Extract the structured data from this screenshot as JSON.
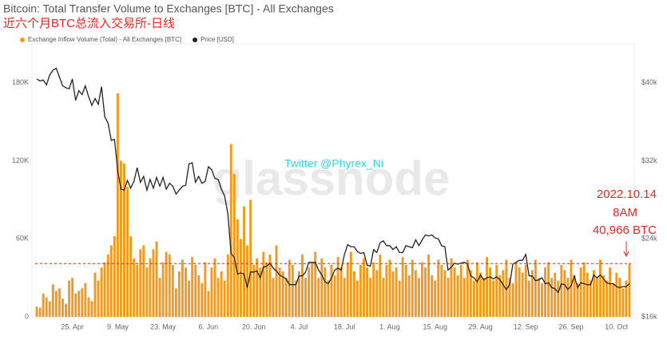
{
  "chart_data": {
    "type": "bar",
    "title": "Bitcoin: Total Transfer Volume to Exchanges [BTC] - All Exchanges",
    "subtitle": "近六个月BTC总流入交易所-日线",
    "watermark": "glassnode",
    "annotations": [
      "Twitter @Phyrex_Ni",
      "2022.10.14",
      "8AM",
      "40,966 BTC"
    ],
    "categories": [
      null,
      null,
      null,
      null,
      null,
      null,
      null,
      null,
      null,
      null,
      null,
      "25. Apr",
      null,
      null,
      null,
      null,
      null,
      null,
      null,
      null,
      null,
      null,
      null,
      null,
      null,
      "9. May",
      null,
      null,
      null,
      null,
      null,
      null,
      null,
      null,
      null,
      null,
      null,
      null,
      null,
      "23. May",
      null,
      null,
      null,
      null,
      null,
      null,
      null,
      null,
      null,
      null,
      null,
      null,
      null,
      "6. Jun",
      null,
      null,
      null,
      null,
      null,
      null,
      null,
      null,
      null,
      null,
      null,
      null,
      null,
      "20. Jun",
      null,
      null,
      null,
      null,
      null,
      null,
      null,
      null,
      null,
      null,
      null,
      null,
      null,
      "4. Jul",
      null,
      null,
      null,
      null,
      null,
      null,
      null,
      null,
      null,
      null,
      null,
      null,
      null,
      "18. Jul",
      null,
      null,
      null,
      null,
      null,
      null,
      null,
      null,
      null,
      null,
      null,
      null,
      null,
      "1. Aug",
      null,
      null,
      null,
      null,
      null,
      null,
      null,
      null,
      null,
      null,
      null,
      null,
      null,
      "15. Aug",
      null,
      null,
      null,
      null,
      null,
      null,
      null,
      null,
      null,
      null,
      null,
      null,
      null,
      "29. Aug",
      null,
      null,
      null,
      null,
      null,
      null,
      null,
      null,
      null,
      null,
      null,
      null,
      null,
      "12. Sep",
      null,
      null,
      null,
      null,
      null,
      null,
      null,
      null,
      null,
      null,
      null,
      null,
      null,
      "26. Sep",
      null,
      null,
      null,
      null,
      null,
      null,
      null,
      null,
      null,
      null,
      null,
      null,
      null,
      "10. Oct",
      null,
      null,
      null,
      null
    ],
    "series": [
      {
        "name": "Exchange Inflow Volume (Total) - All Exchanges [BTC]",
        "type": "bar",
        "color": "#f39a1e",
        "values": [
          8000,
          7000,
          18000,
          15000,
          12000,
          25000,
          20000,
          22000,
          14000,
          10000,
          28000,
          30000,
          18000,
          20000,
          22000,
          26000,
          15000,
          12000,
          34000,
          28000,
          38000,
          42000,
          48000,
          55000,
          62000,
          172000,
          120000,
          118000,
          100000,
          62000,
          45000,
          40000,
          52000,
          55000,
          38000,
          45000,
          52000,
          58000,
          30000,
          42000,
          50000,
          48000,
          40000,
          22000,
          35000,
          44000,
          38000,
          28000,
          46000,
          40000,
          32000,
          26000,
          42000,
          20000,
          38000,
          45000,
          30000,
          35000,
          28000,
          48000,
          133000,
          110000,
          75000,
          60000,
          85000,
          55000,
          90000,
          40000,
          45000,
          38000,
          50000,
          42000,
          48000,
          30000,
          55000,
          38000,
          35000,
          30000,
          44000,
          40000,
          28000,
          35000,
          48000,
          30000,
          38000,
          42000,
          50000,
          30000,
          45000,
          38000,
          28000,
          40000,
          32000,
          46000,
          38000,
          30000,
          42000,
          50000,
          35000,
          28000,
          40000,
          45000,
          38000,
          30000,
          42000,
          36000,
          48000,
          30000,
          40000,
          44000,
          35000,
          38000,
          28000,
          46000,
          40000,
          32000,
          44000,
          36000,
          30000,
          42000,
          38000,
          48000,
          32000,
          28000,
          44000,
          40000,
          36000,
          30000,
          45000,
          38000,
          32000,
          40000,
          30000,
          44000,
          36000,
          28000,
          42000,
          34000,
          30000,
          46000,
          38000,
          28000,
          40000,
          32000,
          36000,
          44000,
          30000,
          26000,
          42000,
          38000,
          34000,
          40000,
          28000,
          36000,
          44000,
          30000,
          26000,
          38000,
          42000,
          30000,
          34000,
          28000,
          40000,
          36000,
          30000,
          44000,
          32000,
          26000,
          38000,
          42000,
          34000,
          28000,
          36000,
          30000,
          44000,
          32000,
          28000,
          38000,
          26000,
          34000,
          30000,
          22000,
          28000,
          40966
        ]
      },
      {
        "name": "Price [USD]",
        "type": "line",
        "axis": "y2",
        "color": "#222222",
        "values": [
          40400,
          40200,
          40300,
          39800,
          40800,
          41300,
          41500,
          40600,
          39700,
          39500,
          39400,
          40400,
          38200,
          39200,
          38800,
          39700,
          38600,
          37700,
          38400,
          37800,
          39600,
          36500,
          35900,
          34100,
          34200,
          31000,
          29100,
          29000,
          30000,
          29200,
          29900,
          31300,
          29800,
          30400,
          29000,
          30100,
          29200,
          30300,
          29400,
          30300,
          29100,
          29700,
          29400,
          28600,
          29000,
          29400,
          29500,
          31700,
          31800,
          29800,
          30400,
          29700,
          29900,
          31400,
          31100,
          30200,
          30100,
          29100,
          28400,
          26600,
          22500,
          22100,
          20400,
          20500,
          20400,
          19000,
          20600,
          20600,
          20700,
          20000,
          21100,
          21200,
          21500,
          21000,
          20700,
          20300,
          20100,
          19900,
          19300,
          19300,
          19300,
          20200,
          20200,
          20600,
          21600,
          21600,
          21600,
          20800,
          20300,
          19600,
          19400,
          20000,
          20800,
          21000,
          20800,
          22400,
          23400,
          23200,
          23200,
          22700,
          22500,
          22600,
          21300,
          21200,
          22900,
          22600,
          23600,
          23800,
          23300,
          23300,
          22900,
          23200,
          22600,
          22600,
          23300,
          23200,
          23100,
          23900,
          23300,
          23900,
          24400,
          24300,
          24400,
          24100,
          24000,
          23300,
          23200,
          20800,
          21100,
          21500,
          21400,
          21500,
          21600,
          21400,
          20200,
          20000,
          19600,
          20300,
          19800,
          20000,
          20100,
          19900,
          20100,
          19800,
          19300,
          18800,
          19300,
          21400,
          21600,
          21800,
          21800,
          22400,
          20200,
          20200,
          19700,
          19800,
          20000,
          19400,
          19500,
          19000,
          18900,
          18500,
          19400,
          19300,
          18800,
          19200,
          20200,
          19000,
          19500,
          19400,
          19300,
          19300,
          20300,
          20000,
          20300,
          19900,
          19500,
          19400,
          19400,
          19100,
          19000,
          19100,
          19100,
          19400
        ]
      }
    ],
    "ylim": [
      0,
      210000
    ],
    "yticks": [
      0,
      {
        "value": 60000,
        "label": "60K"
      },
      {
        "value": 120000,
        "label": "120K"
      },
      {
        "value": 180000,
        "label": "180K"
      }
    ],
    "y2lim": [
      16000,
      44000
    ],
    "y2ticks": [
      {
        "value": 16000,
        "label": "$16k"
      },
      {
        "value": 24000,
        "label": "$24k"
      },
      {
        "value": 32000,
        "label": "$32k"
      },
      {
        "value": 40000,
        "label": "$40k"
      }
    ],
    "legend": "top"
  }
}
